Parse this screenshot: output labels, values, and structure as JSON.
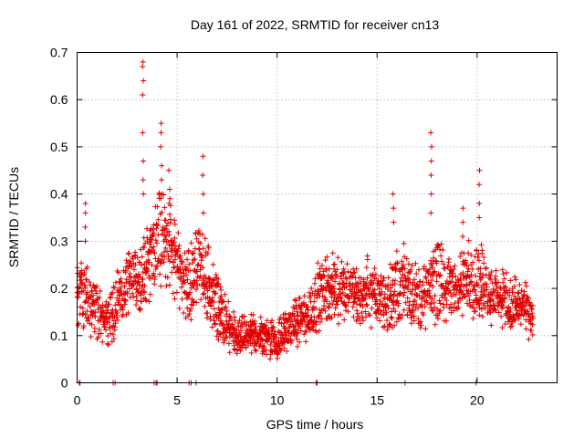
{
  "chart_data": {
    "type": "scatter",
    "title": "Day 161 of 2022, SRMTID for receiver cn13",
    "xlabel": "GPS time / hours",
    "ylabel": "SRMTID / TECUs",
    "xlim": [
      0,
      24
    ],
    "ylim": [
      0,
      0.7
    ],
    "xticks": [
      0,
      5,
      10,
      15,
      20
    ],
    "xtick_labels": [
      "0",
      "5",
      "10",
      "15",
      "20"
    ],
    "yticks": [
      0,
      0.1,
      0.2,
      0.3,
      0.4,
      0.5,
      0.6,
      0.7
    ],
    "ytick_labels": [
      "0",
      "0.1",
      "0.2",
      "0.3",
      "0.4",
      "0.5",
      "0.6",
      "0.7"
    ],
    "grid": true,
    "marker": "plus",
    "color": "#e00000",
    "envelope": {
      "x": [
        0.0,
        0.5,
        1.0,
        1.5,
        2.0,
        2.5,
        3.0,
        3.5,
        4.0,
        4.5,
        5.0,
        5.5,
        6.0,
        6.5,
        7.0,
        7.5,
        8.0,
        8.5,
        9.0,
        9.5,
        10.0,
        10.5,
        11.0,
        11.5,
        12.0,
        12.5,
        13.0,
        13.5,
        14.0,
        14.5,
        15.0,
        15.5,
        16.0,
        16.5,
        17.0,
        17.5,
        18.0,
        18.5,
        19.0,
        19.5,
        20.0,
        20.5,
        21.0,
        21.5,
        22.0,
        22.5,
        22.8
      ],
      "median": [
        0.2,
        0.18,
        0.16,
        0.12,
        0.18,
        0.2,
        0.22,
        0.25,
        0.3,
        0.32,
        0.25,
        0.2,
        0.25,
        0.22,
        0.16,
        0.12,
        0.09,
        0.1,
        0.1,
        0.1,
        0.09,
        0.11,
        0.13,
        0.14,
        0.18,
        0.2,
        0.2,
        0.2,
        0.18,
        0.2,
        0.18,
        0.17,
        0.2,
        0.22,
        0.18,
        0.18,
        0.22,
        0.2,
        0.2,
        0.22,
        0.22,
        0.2,
        0.18,
        0.17,
        0.16,
        0.15,
        0.13
      ],
      "spread": [
        0.08,
        0.08,
        0.08,
        0.06,
        0.08,
        0.08,
        0.08,
        0.1,
        0.12,
        0.12,
        0.1,
        0.1,
        0.1,
        0.1,
        0.08,
        0.06,
        0.05,
        0.05,
        0.05,
        0.05,
        0.05,
        0.05,
        0.06,
        0.07,
        0.08,
        0.08,
        0.08,
        0.08,
        0.07,
        0.08,
        0.08,
        0.08,
        0.1,
        0.1,
        0.08,
        0.08,
        0.1,
        0.08,
        0.08,
        0.08,
        0.1,
        0.08,
        0.07,
        0.07,
        0.07,
        0.06,
        0.05
      ]
    },
    "spikes": [
      {
        "x": 0.4,
        "values": [
          0.38,
          0.36,
          0.33,
          0.3
        ]
      },
      {
        "x": 3.3,
        "values": [
          0.68,
          0.67,
          0.64,
          0.61,
          0.53,
          0.47,
          0.43,
          0.4
        ]
      },
      {
        "x": 4.2,
        "values": [
          0.55,
          0.53,
          0.5,
          0.46,
          0.43,
          0.4
        ]
      },
      {
        "x": 4.6,
        "values": [
          0.45,
          0.41,
          0.38
        ]
      },
      {
        "x": 6.3,
        "values": [
          0.48,
          0.44,
          0.4,
          0.36
        ]
      },
      {
        "x": 15.8,
        "values": [
          0.4,
          0.37,
          0.34
        ]
      },
      {
        "x": 17.7,
        "values": [
          0.53,
          0.5,
          0.47,
          0.44,
          0.4,
          0.36
        ]
      },
      {
        "x": 19.3,
        "values": [
          0.37,
          0.34,
          0.31
        ]
      },
      {
        "x": 20.1,
        "values": [
          0.45,
          0.42,
          0.38,
          0.35
        ]
      }
    ],
    "baseline_points_x": [
      0.1,
      0.15,
      1.8,
      1.9,
      3.85,
      3.95,
      4.0,
      5.6,
      5.7,
      5.95,
      11.95,
      12.0,
      16.4,
      19.95
    ]
  }
}
